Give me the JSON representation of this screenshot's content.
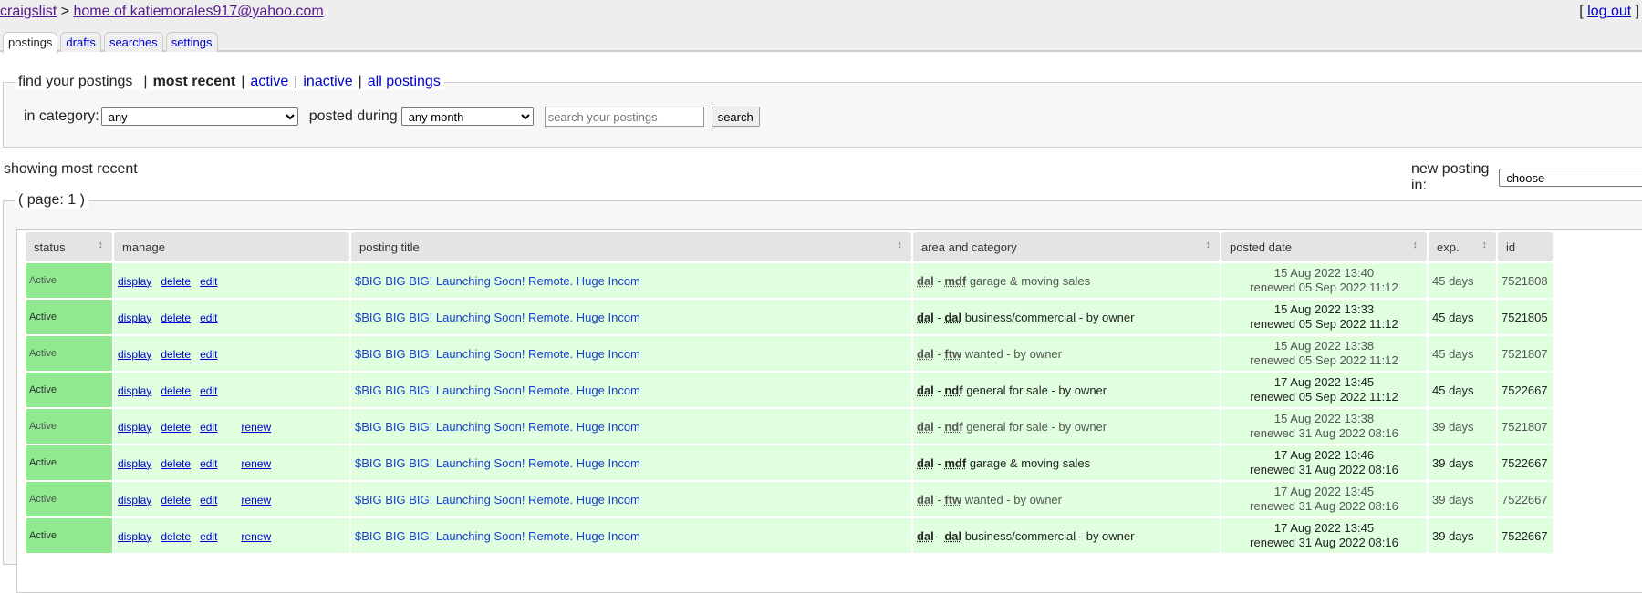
{
  "header": {
    "site": "craigslist",
    "separator": ">",
    "home": "home of katiemorales917@yahoo.com",
    "logout_pre": "[",
    "logout": "log out",
    "logout_post": "] ["
  },
  "tabs": [
    "postings",
    "drafts",
    "searches",
    "settings"
  ],
  "find": {
    "legend": "find your postings",
    "most_recent": "most recent",
    "active": "active",
    "inactive": "inactive",
    "all": "all postings",
    "category_label": "in category:",
    "category_value": "any",
    "posted_label": "posted during",
    "posted_value": "any month",
    "search_placeholder": "search your postings",
    "search_button": "search"
  },
  "showing": "showing most recent",
  "new_posting": {
    "label": "new posting in:",
    "value": "choose"
  },
  "page": "( page: 1 )",
  "columns": [
    "status",
    "manage",
    "posting title",
    "area and category",
    "posted date",
    "exp.",
    "id"
  ],
  "actions": {
    "display": "display",
    "delete": "delete",
    "edit": "edit",
    "renew": "renew"
  },
  "rows": [
    {
      "status": "Active",
      "renew": false,
      "title": "$BIG BIG BIG! Launching Soon! Remote. Huge Incom",
      "area": "dal",
      "sub": "mdf",
      "cat": "garage & moving sales",
      "posted": "15 Aug 2022 13:40",
      "renewed": "renewed 05 Sep 2022 11:12",
      "exp": "45 days",
      "id": "7521808"
    },
    {
      "status": "Active",
      "renew": false,
      "title": "$BIG BIG BIG! Launching Soon! Remote. Huge Incom",
      "area": "dal",
      "sub": "dal",
      "cat": "business/commercial - by owner",
      "posted": "15 Aug 2022 13:33",
      "renewed": "renewed 05 Sep 2022 11:12",
      "exp": "45 days",
      "id": "7521805"
    },
    {
      "status": "Active",
      "renew": false,
      "title": "$BIG BIG BIG! Launching Soon! Remote. Huge Incom",
      "area": "dal",
      "sub": "ftw",
      "cat": "wanted - by owner",
      "posted": "15 Aug 2022 13:38",
      "renewed": "renewed 05 Sep 2022 11:12",
      "exp": "45 days",
      "id": "7521807"
    },
    {
      "status": "Active",
      "renew": false,
      "title": "$BIG BIG BIG! Launching Soon! Remote. Huge Incom",
      "area": "dal",
      "sub": "ndf",
      "cat": "general for sale - by owner",
      "posted": "17 Aug 2022 13:45",
      "renewed": "renewed 05 Sep 2022 11:12",
      "exp": "45 days",
      "id": "7522667"
    },
    {
      "status": "Active",
      "renew": true,
      "title": "$BIG BIG BIG! Launching Soon! Remote. Huge Incom",
      "area": "dal",
      "sub": "ndf",
      "cat": "general for sale - by owner",
      "posted": "15 Aug 2022 13:38",
      "renewed": "renewed 31 Aug 2022 08:16",
      "exp": "39 days",
      "id": "7521807"
    },
    {
      "status": "Active",
      "renew": true,
      "title": "$BIG BIG BIG! Launching Soon! Remote. Huge Incom",
      "area": "dal",
      "sub": "mdf",
      "cat": "garage & moving sales",
      "posted": "17 Aug 2022 13:46",
      "renewed": "renewed 31 Aug 2022 08:16",
      "exp": "39 days",
      "id": "7522667"
    },
    {
      "status": "Active",
      "renew": true,
      "title": "$BIG BIG BIG! Launching Soon! Remote. Huge Incom",
      "area": "dal",
      "sub": "ftw",
      "cat": "wanted - by owner",
      "posted": "17 Aug 2022 13:45",
      "renewed": "renewed 31 Aug 2022 08:16",
      "exp": "39 days",
      "id": "7522667"
    },
    {
      "status": "Active",
      "renew": true,
      "title": "$BIG BIG BIG! Launching Soon! Remote. Huge Incom",
      "area": "dal",
      "sub": "dal",
      "cat": "business/commercial - by owner",
      "posted": "17 Aug 2022 13:45",
      "renewed": "renewed 31 Aug 2022 08:16",
      "exp": "39 days",
      "id": "7522667"
    }
  ],
  "colors": {
    "status_bg": "#90e890",
    "row_bg": "#dfffdf",
    "link": "#0000cc"
  }
}
